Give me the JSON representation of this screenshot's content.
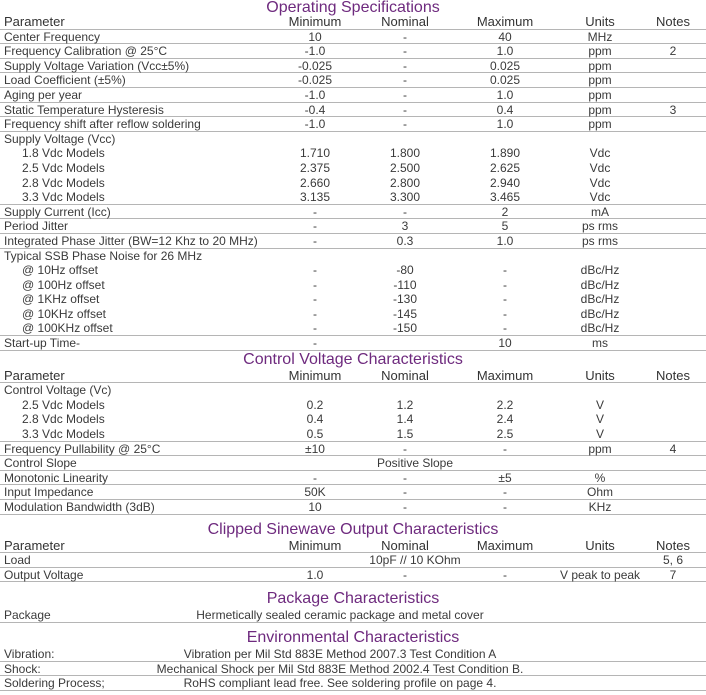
{
  "headers": [
    "Parameter",
    "Minimum",
    "Nominal",
    "Maximum",
    "Units",
    "Notes"
  ],
  "sections": [
    {
      "title": "Operating Specifications",
      "rows": [
        {
          "param": "Center Frequency",
          "min": "10",
          "nom": "-",
          "max": "40",
          "units": "MHz",
          "notes": ""
        },
        {
          "param": "Frequency Calibration @ 25°C",
          "min": "-1.0",
          "nom": "-",
          "max": "1.0",
          "units": "ppm",
          "notes": "2"
        },
        {
          "param": "Supply Voltage Variation (Vcc±5%)",
          "min": "-0.025",
          "nom": "-",
          "max": "0.025",
          "units": "ppm",
          "notes": ""
        },
        {
          "param": "Load Coefficient (±5%)",
          "min": "-0.025",
          "nom": "-",
          "max": "0.025",
          "units": "ppm",
          "notes": ""
        },
        {
          "param": "Aging per year",
          "min": "-1.0",
          "nom": "-",
          "max": "1.0",
          "units": "ppm",
          "notes": ""
        },
        {
          "param": "Static Temperature Hysteresis",
          "min": "-0.4",
          "nom": "-",
          "max": "0.4",
          "units": "ppm",
          "notes": "3"
        },
        {
          "param": "Frequency shift after reflow soldering",
          "min": "-1.0",
          "nom": "-",
          "max": "1.0",
          "units": "ppm",
          "notes": ""
        },
        {
          "param": "Supply Voltage (Vcc)",
          "min": "",
          "nom": "",
          "max": "",
          "units": "",
          "notes": ""
        },
        {
          "param": "1.8 Vdc Models",
          "min": "1.710",
          "nom": "1.800",
          "max": "1.890",
          "units": "Vdc",
          "notes": "",
          "sub": true
        },
        {
          "param": "2.5 Vdc Models",
          "min": "2.375",
          "nom": "2.500",
          "max": "2.625",
          "units": "Vdc",
          "notes": "",
          "sub": true
        },
        {
          "param": "2.8 Vdc Models",
          "min": "2.660",
          "nom": "2.800",
          "max": "2.940",
          "units": "Vdc",
          "notes": "",
          "sub": true
        },
        {
          "param": "3.3 Vdc Models",
          "min": "3.135",
          "nom": "3.300",
          "max": "3.465",
          "units": "Vdc",
          "notes": "",
          "sub": true
        },
        {
          "param": "Supply Current (Icc)",
          "min": "-",
          "nom": "-",
          "max": "2",
          "units": "mA",
          "notes": ""
        },
        {
          "param": "Period Jitter",
          "min": "-",
          "nom": "3",
          "max": "5",
          "units": "ps rms",
          "notes": ""
        },
        {
          "param": "Integrated Phase Jitter (BW=12 Khz to 20 MHz)",
          "min": "-",
          "nom": "0.3",
          "max": "1.0",
          "units": "ps rms",
          "notes": ""
        },
        {
          "param": "Typical SSB Phase Noise for 26 MHz",
          "min": "",
          "nom": "",
          "max": "",
          "units": "",
          "notes": ""
        },
        {
          "param": "@ 10Hz offset",
          "min": "-",
          "nom": "-80",
          "max": "-",
          "units": "dBc/Hz",
          "notes": "",
          "sub": true
        },
        {
          "param": "@ 100Hz offset",
          "min": "-",
          "nom": "-110",
          "max": "-",
          "units": "dBc/Hz",
          "notes": "",
          "sub": true
        },
        {
          "param": "@ 1KHz offset",
          "min": "-",
          "nom": "-130",
          "max": "-",
          "units": "dBc/Hz",
          "notes": "",
          "sub": true
        },
        {
          "param": "@ 10KHz offset",
          "min": "-",
          "nom": "-145",
          "max": "-",
          "units": "dBc/Hz",
          "notes": "",
          "sub": true
        },
        {
          "param": "@ 100KHz offset",
          "min": "-",
          "nom": "-150",
          "max": "-",
          "units": "dBc/Hz",
          "notes": "",
          "sub": true
        },
        {
          "param": "Start-up Time-",
          "min": "-",
          "nom": "",
          "max": "10",
          "units": "ms",
          "notes": ""
        }
      ]
    },
    {
      "title": "Control Voltage Characteristics",
      "rows": [
        {
          "param": "Control Voltage (Vc)",
          "min": "",
          "nom": "",
          "max": "",
          "units": "",
          "notes": ""
        },
        {
          "param": "2.5 Vdc Models",
          "min": "0.2",
          "nom": "1.2",
          "max": "2.2",
          "units": "V",
          "notes": "",
          "sub": true
        },
        {
          "param": "2.8 Vdc Models",
          "min": "0.4",
          "nom": "1.4",
          "max": "2.4",
          "units": "V",
          "notes": "",
          "sub": true
        },
        {
          "param": "3.3 Vdc Models",
          "min": "0.5",
          "nom": "1.5",
          "max": "2.5",
          "units": "V",
          "notes": "",
          "sub": true
        },
        {
          "param": "Frequency Pullability @ 25°C",
          "min": "±10",
          "nom": "-",
          "max": "-",
          "units": "ppm",
          "notes": "4"
        },
        {
          "param": "Control Slope",
          "span": "Positive Slope",
          "units": "",
          "notes": ""
        },
        {
          "param": "Monotonic Linearity",
          "min": "-",
          "nom": "-",
          "max": "±5",
          "units": "%",
          "notes": ""
        },
        {
          "param": "Input Impedance",
          "min": "50K",
          "nom": "-",
          "max": "-",
          "units": "Ohm",
          "notes": ""
        },
        {
          "param": "Modulation Bandwidth (3dB)",
          "min": "10",
          "nom": "-",
          "max": "-",
          "units": "KHz",
          "notes": ""
        }
      ]
    },
    {
      "title": "Clipped Sinewave Output Characteristics",
      "rows": [
        {
          "param": "Load",
          "span": "10pF // 10 KOhm",
          "units": "",
          "notes": "5, 6"
        },
        {
          "param": "Output Voltage",
          "min": "1.0",
          "nom": "-",
          "max": "-",
          "units": "V peak to peak",
          "notes": "7"
        }
      ]
    }
  ],
  "simple_sections": [
    {
      "title": "Package Characteristics",
      "rows": [
        {
          "label": "Package",
          "value": "Hermetically sealed ceramic package and metal cover"
        }
      ]
    },
    {
      "title": "Environmental Characteristics",
      "rows": [
        {
          "label": "Vibration:",
          "value": "Vibration per Mil Std 883E Method 2007.3 Test Condition A"
        },
        {
          "label": "Shock:",
          "value": "Mechanical Shock per Mil Std 883E Method 2002.4 Test Condition B."
        },
        {
          "label": "Soldering Process;",
          "value": "RoHS compliant lead free. See soldering profile on page 4."
        }
      ]
    }
  ],
  "colors": {
    "title": "#6e2a7e",
    "text": "#3a3a3a",
    "rule": "#b5b5b5"
  }
}
